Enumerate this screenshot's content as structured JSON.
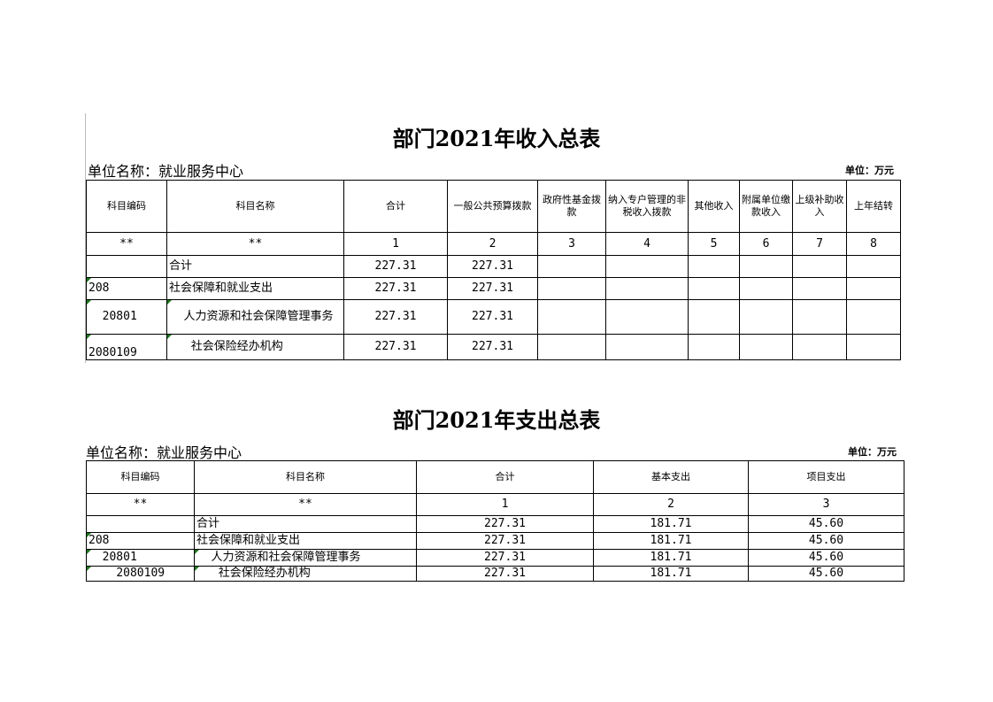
{
  "income": {
    "title": "部门2021年收入总表",
    "unit_name": "单位名称：就业服务中心",
    "unit": "单位：万元",
    "headers": [
      "科目编码",
      "科目名称",
      "合计",
      "一般公共预算拨款",
      "政府性基金拨款",
      "纳入专户管理的非税收入拨款",
      "其他收入",
      "附属单位缴款收入",
      "上级补助收入",
      "上年结转"
    ],
    "index_row": [
      "**",
      "**",
      "1",
      "2",
      "3",
      "4",
      "5",
      "6",
      "7",
      "8"
    ],
    "rows": [
      [
        "",
        "合计",
        "227.31",
        "227.31",
        "",
        "",
        "",
        "",
        "",
        ""
      ],
      [
        "208",
        "社会保障和就业支出",
        "227.31",
        "227.31",
        "",
        "",
        "",
        "",
        "",
        ""
      ],
      [
        "  20801",
        "    人力资源和社会保障管理事务",
        "227.31",
        "227.31",
        "",
        "",
        "",
        "",
        "",
        ""
      ],
      [
        "    2080109",
        "      社会保险经办机构",
        "227.31",
        "227.31",
        "",
        "",
        "",
        "",
        "",
        ""
      ]
    ]
  },
  "expense": {
    "title": "部门2021年支出总表",
    "unit_name": "单位名称：就业服务中心",
    "unit": "单位：万元",
    "headers": [
      "科目编码",
      "科目名称",
      "合计",
      "基本支出",
      "项目支出"
    ],
    "index_row": [
      "**",
      "**",
      "1",
      "2",
      "3"
    ],
    "rows": [
      [
        "",
        "合计",
        "227.31",
        "181.71",
        "45.60"
      ],
      [
        "208",
        "社会保障和就业支出",
        "227.31",
        "181.71",
        "45.60"
      ],
      [
        "  20801",
        "    人力资源和社会保障管理事务",
        "227.31",
        "181.71",
        "45.60"
      ],
      [
        "    2080109",
        "      社会保险经办机构",
        "227.31",
        "181.71",
        "45.60"
      ]
    ]
  },
  "colors": {
    "marker": "#1a7a1a"
  }
}
